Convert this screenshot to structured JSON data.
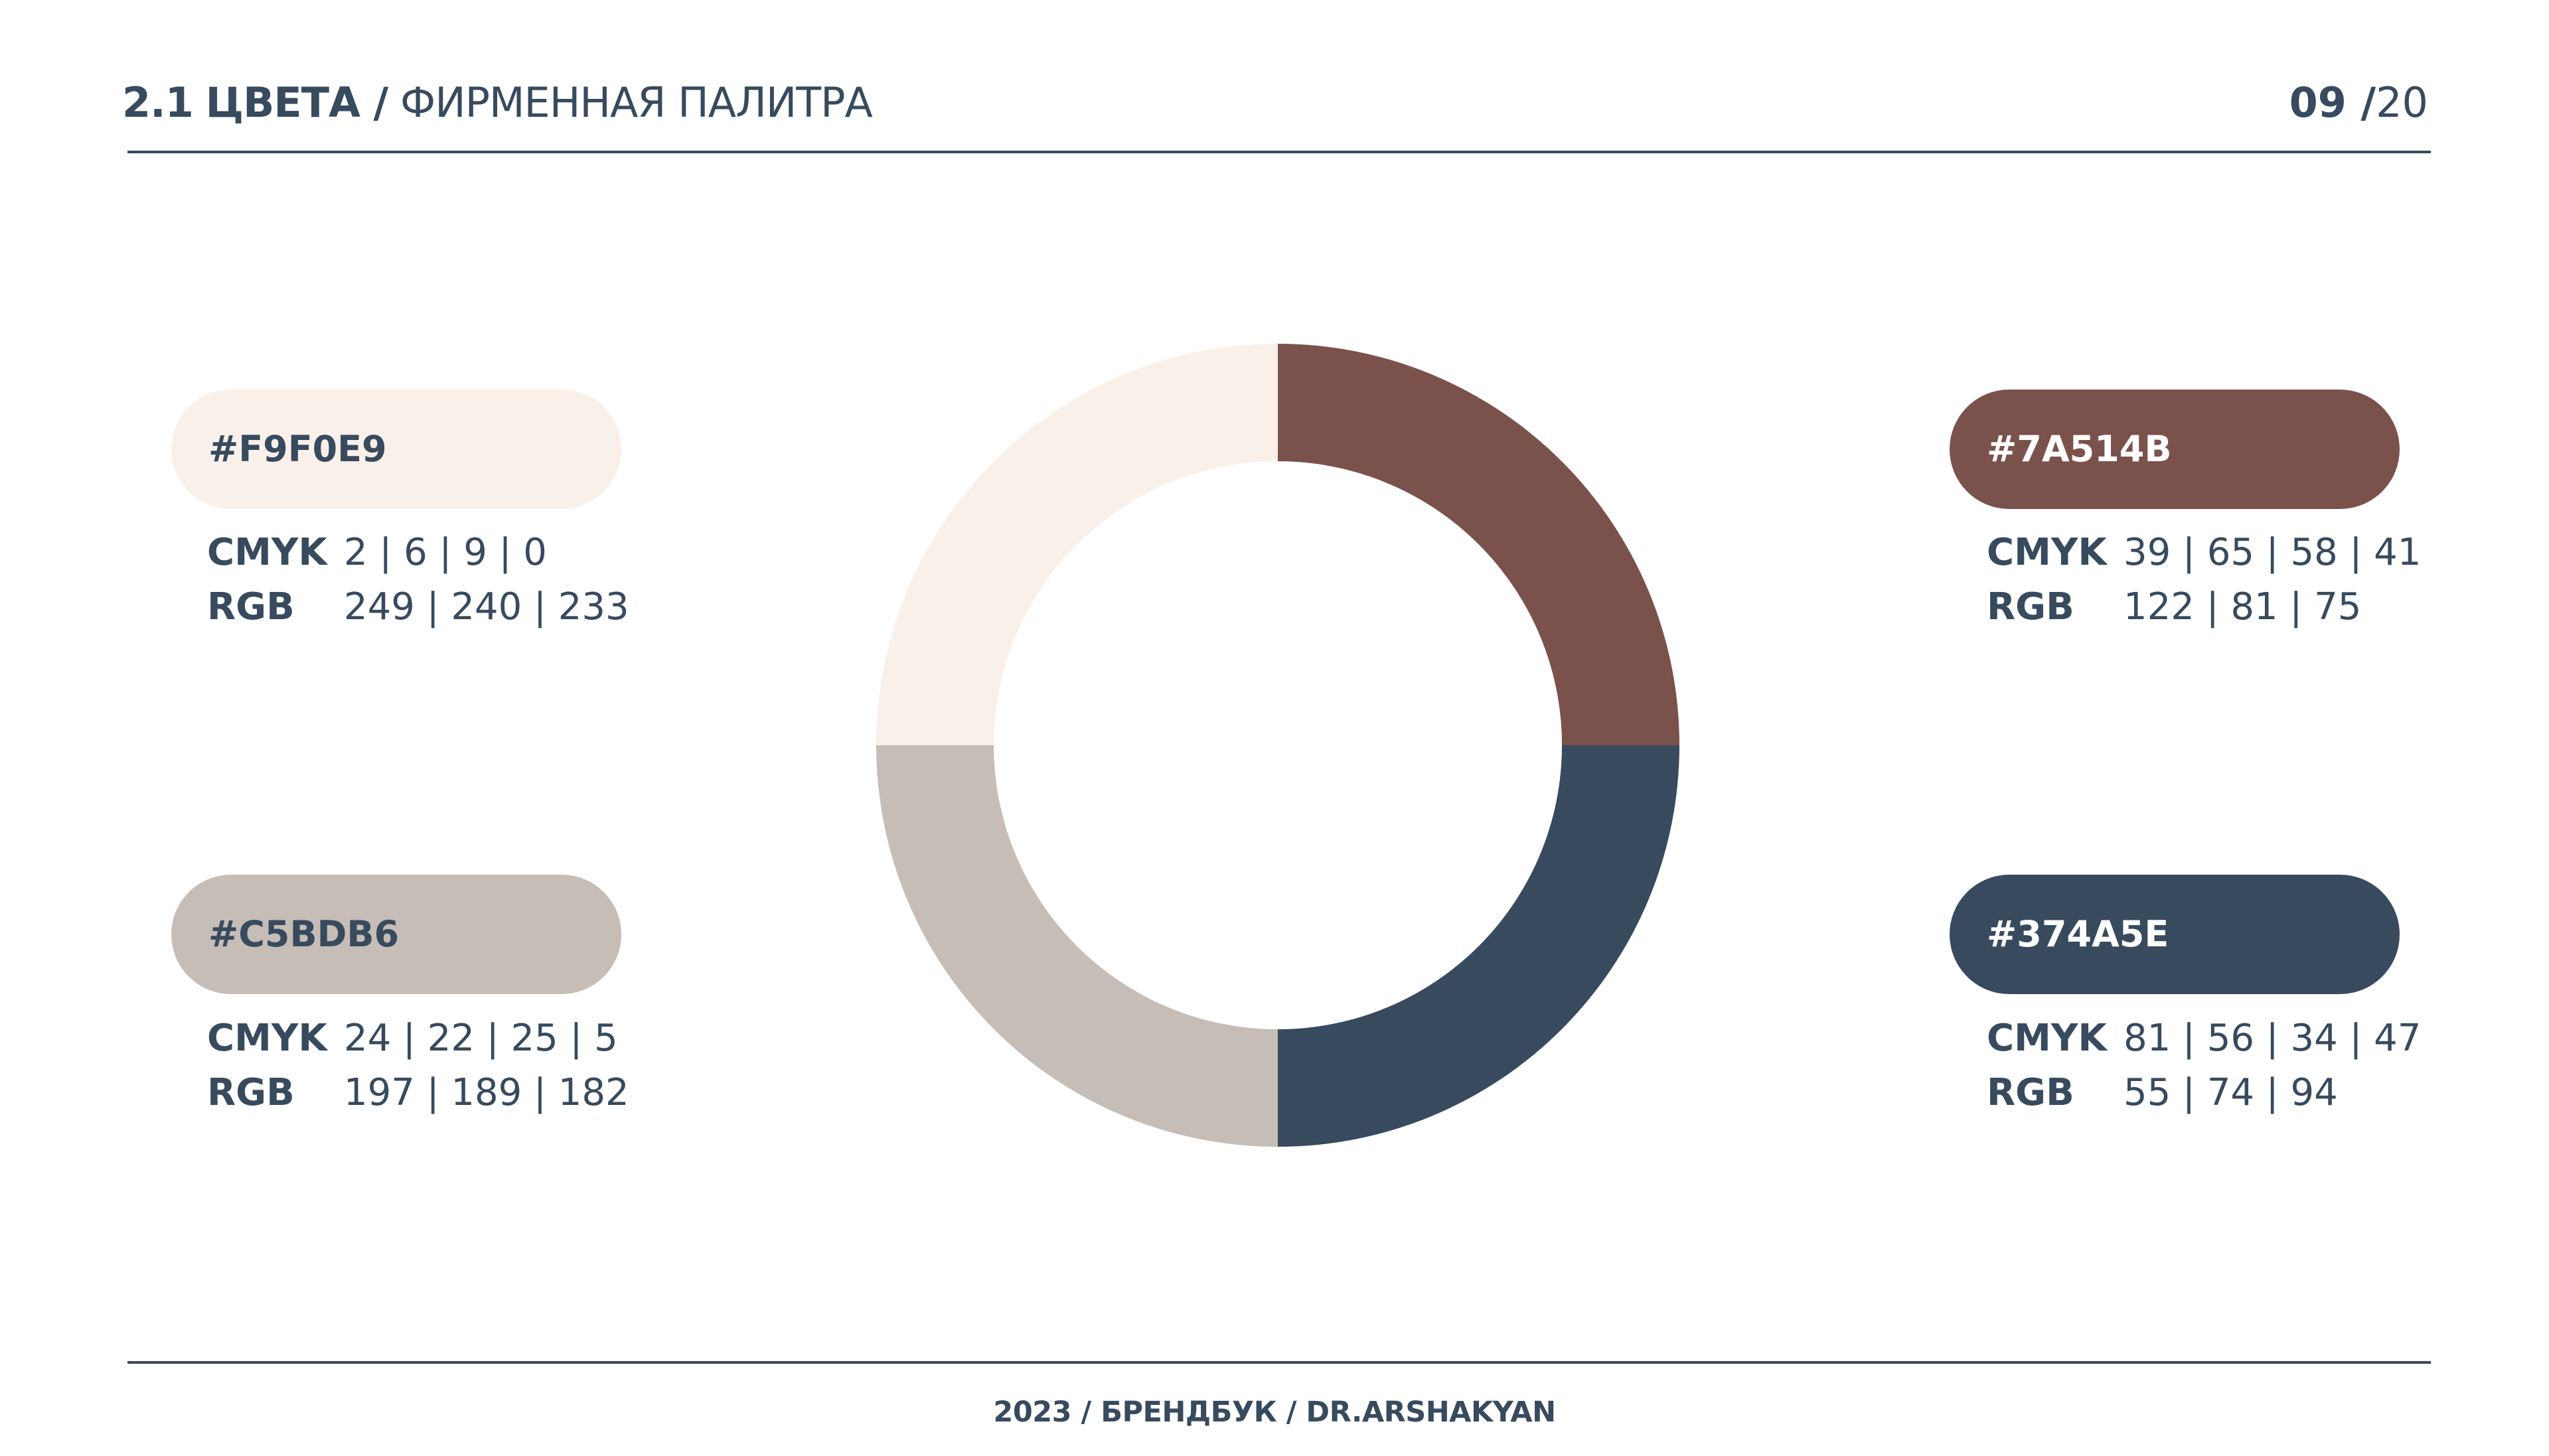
{
  "header": {
    "section_number": "2.1",
    "section_name": "ЦВЕТА /",
    "subtitle": "ФИРМЕННАЯ ПАЛИТРА",
    "page_current": "09 /",
    "page_total": "20"
  },
  "swatches": [
    {
      "hex_label": "#F9F0E9",
      "color": "#F9F0E9",
      "text_color": "#374A5E",
      "cmyk_label": "CMYK",
      "cmyk": "2 | 6 | 9 | 0",
      "rgb_label": "RGB",
      "rgb": "249 | 240 | 233"
    },
    {
      "hex_label": "#7A514B",
      "color": "#7A514B",
      "text_color": "#FFFFFF",
      "cmyk_label": "CMYK",
      "cmyk": "39 | 65 | 58 | 41",
      "rgb_label": "RGB",
      "rgb": "122 | 81 | 75"
    },
    {
      "hex_label": "#C5BDB6",
      "color": "#C5BDB6",
      "text_color": "#374A5E",
      "cmyk_label": "CMYK",
      "cmyk": "24 | 22 | 25 | 5",
      "rgb_label": "RGB",
      "rgb": "197 | 189 | 182"
    },
    {
      "hex_label": "#374A5E",
      "color": "#374A5E",
      "text_color": "#FFFFFF",
      "cmyk_label": "CMYK",
      "cmyk": "81 | 56 | 34 | 47",
      "rgb_label": "RGB",
      "rgb": "55 | 74 | 94"
    }
  ],
  "chart_data": {
    "type": "pie",
    "variant": "donut",
    "slices": [
      {
        "color": "#7A514B",
        "value": 25
      },
      {
        "color": "#374A5E",
        "value": 25
      },
      {
        "color": "#C5BDB6",
        "value": 25
      },
      {
        "color": "#F9F0E9",
        "value": 25
      }
    ]
  },
  "footer": {
    "text": "2023 / БРЕНДБУК / DR.ARSHAKYAN"
  }
}
